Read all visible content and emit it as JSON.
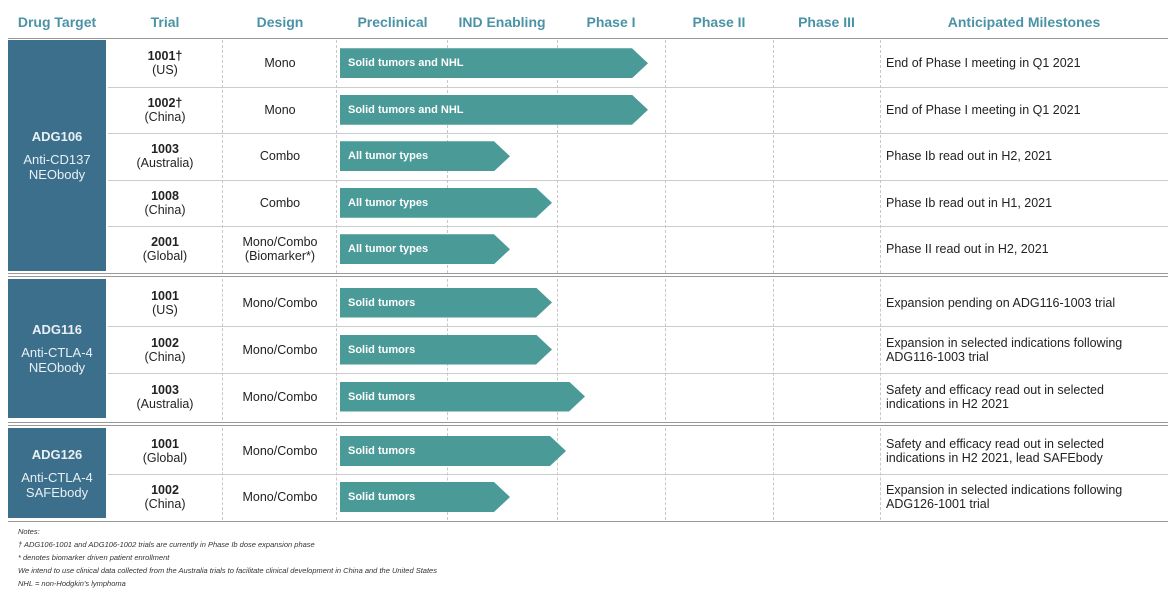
{
  "header": {
    "columns": [
      "Drug Target",
      "Trial",
      "Design",
      "Preclinical",
      "IND Enabling",
      "Phase I",
      "Phase II",
      "Phase III",
      "Anticipated Milestones"
    ]
  },
  "groups": [
    {
      "name": "ADG106",
      "description": [
        "Anti-CD137",
        "NEObody"
      ],
      "trials": [
        {
          "id": "1001†",
          "location": "(US)",
          "design": [
            "Mono"
          ],
          "indication": "Solid tumors and NHL",
          "milestone": [
            "End of Phase I meeting in Q1 2021"
          ]
        },
        {
          "id": "1002†",
          "location": "(China)",
          "design": [
            "Mono"
          ],
          "indication": "Solid tumors and NHL",
          "milestone": [
            "End of Phase I meeting in Q1 2021"
          ]
        },
        {
          "id": "1003",
          "location": "(Australia)",
          "design": [
            "Combo"
          ],
          "indication": "All tumor types",
          "milestone": [
            "Phase Ib read out in H2, 2021"
          ]
        },
        {
          "id": "1008",
          "location": "(China)",
          "design": [
            "Combo"
          ],
          "indication": "All tumor types",
          "milestone": [
            "Phase Ib read out in H1, 2021"
          ]
        },
        {
          "id": "2001",
          "location": "(Global)",
          "design": [
            "Mono/Combo",
            "(Biomarker*)"
          ],
          "indication": "All tumor types",
          "milestone": [
            "Phase II read out in H2, 2021"
          ]
        }
      ]
    },
    {
      "name": "ADG116",
      "description": [
        "Anti-CTLA-4",
        "NEObody"
      ],
      "trials": [
        {
          "id": "1001",
          "location": "(US)",
          "design": [
            "Mono/Combo"
          ],
          "indication": "Solid tumors",
          "milestone": [
            "Expansion pending on ADG116-1003 trial"
          ]
        },
        {
          "id": "1002",
          "location": "(China)",
          "design": [
            "Mono/Combo"
          ],
          "indication": "Solid tumors",
          "milestone": [
            "Expansion in selected indications following",
            "ADG116-1003 trial"
          ]
        },
        {
          "id": "1003",
          "location": "(Australia)",
          "design": [
            "Mono/Combo"
          ],
          "indication": "Solid tumors",
          "milestone": [
            "Safety and efficacy read out in selected",
            "indications in H2 2021"
          ]
        }
      ]
    },
    {
      "name": "ADG126",
      "description": [
        "Anti-CTLA-4",
        "SAFEbody"
      ],
      "trials": [
        {
          "id": "1001",
          "location": "(Global)",
          "design": [
            "Mono/Combo"
          ],
          "indication": "Solid tumors",
          "milestone": [
            "Safety and efficacy read out in selected",
            "indications in H2 2021, lead SAFEbody"
          ]
        },
        {
          "id": "1002",
          "location": "(China)",
          "design": [
            "Mono/Combo"
          ],
          "indication": "Solid tumors",
          "milestone": [
            "Expansion in selected indications following",
            "ADG126-1001 trial"
          ]
        }
      ]
    }
  ],
  "notes": [
    "Notes:",
    "† ADG106-1001 and ADG106-1002 trials are currently in Phase Ib dose expansion phase",
    "* denotes biomarker driven patient enrollment",
    "We intend to use clinical data collected from the Australia trials to facilitate clinical development in China and the United States",
    "NHL = non-Hodgkin's lymphoma"
  ]
}
